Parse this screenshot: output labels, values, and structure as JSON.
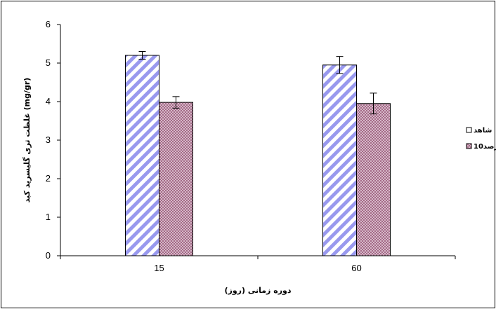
{
  "chart_data": {
    "type": "bar",
    "categories": [
      "15",
      "60"
    ],
    "series": [
      {
        "name": "شاهد",
        "values": [
          5.2,
          4.95
        ],
        "errors": [
          0.1,
          0.22
        ],
        "color": "#9999ee",
        "pattern": "diagonal-stripes"
      },
      {
        "name": "10درصد",
        "values": [
          3.98,
          3.95
        ],
        "errors": [
          0.15,
          0.27
        ],
        "color": "#b07090",
        "pattern": "crosshatch"
      }
    ],
    "xlabel": "دوره زمانی (روز)",
    "ylabel": "غلظت تری گلیسرید کبد (mg/gr)",
    "ylim": [
      0,
      6
    ],
    "yticks": [
      "0",
      "1",
      "2",
      "3",
      "4",
      "5",
      "6"
    ],
    "grid": false,
    "legend": "right",
    "colors": {
      "stripe": "#9999ee",
      "stripe_bg": "#ffffff",
      "hatch": "#9a5a7a",
      "hatch_bg": "#f4eef4",
      "axis": "#000000"
    }
  }
}
